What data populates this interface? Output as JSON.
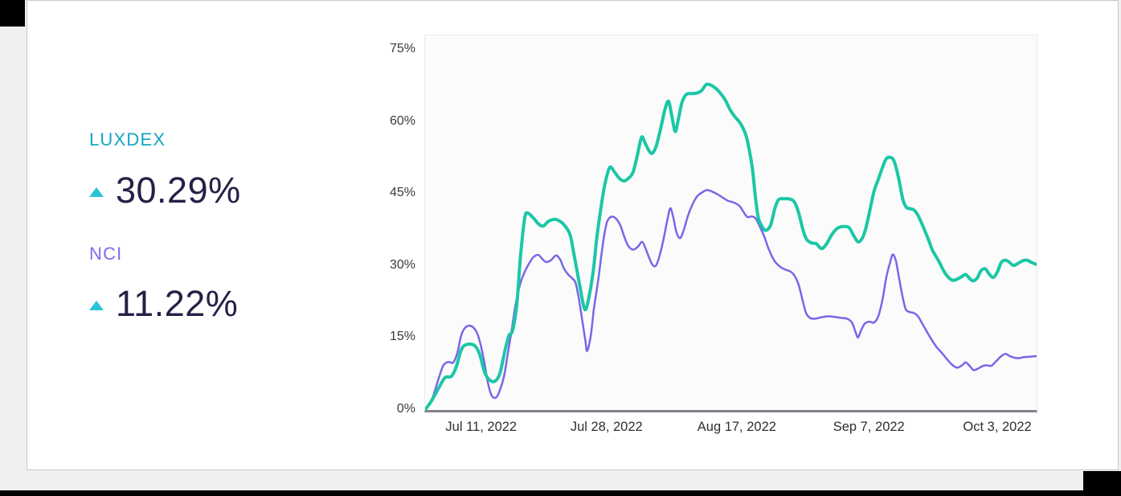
{
  "decor": {
    "black": "#000000",
    "page_background": "#f0f0f0",
    "card_background": "#ffffff",
    "card_border": "#c9c9c9"
  },
  "stats": {
    "luxdex": {
      "label": "LUXDEX",
      "value": "30.29%",
      "direction": "up"
    },
    "nci": {
      "label": "NCI",
      "value": "11.22%",
      "direction": "up"
    }
  },
  "colors": {
    "luxdex_label": "#12a5c3",
    "nci_label": "#7b6cf0",
    "arrow": "#29c5d6",
    "value_text": "#252046",
    "axis_text": "#3a3a3a",
    "axis_line": "#83838d",
    "plot_background": "#fbfbfb",
    "plot_border": "#eaeaec",
    "luxdex_line": "#1bc7a6",
    "nci_line": "#7668e8"
  },
  "chart_data": {
    "type": "line",
    "title": "",
    "xlabel": "",
    "ylabel": "",
    "grid": false,
    "legend_position": "left-panel",
    "ylim": [
      0,
      75
    ],
    "y_unit": "%",
    "yticks": [
      {
        "label": "75%",
        "value": 75
      },
      {
        "label": "60%",
        "value": 60
      },
      {
        "label": "45%",
        "value": 45
      },
      {
        "label": "30%",
        "value": 30
      },
      {
        "label": "15%",
        "value": 15
      },
      {
        "label": "0%",
        "value": 0
      }
    ],
    "xticks": [
      {
        "label": "Jul 11, 2022",
        "pos": 0.093
      },
      {
        "label": "Jul 28, 2022",
        "pos": 0.298
      },
      {
        "label": "Aug 17, 2022",
        "pos": 0.511
      },
      {
        "label": "Sep 7, 2022",
        "pos": 0.727
      },
      {
        "label": "Oct 3, 2022",
        "pos": 0.937
      }
    ],
    "x_range_note": "x positions are fractions of the plot width from Jul 2022 to Oct 3 2022",
    "series": [
      {
        "name": "LUXDEX",
        "color": "#1bc7a6",
        "stroke_width": 4,
        "final_value": "30.29%",
        "points": [
          [
            0,
            0
          ],
          [
            0.011,
            2
          ],
          [
            0.024,
            5
          ],
          [
            0.033,
            6.8
          ],
          [
            0.043,
            7
          ],
          [
            0.051,
            9
          ],
          [
            0.059,
            12.5
          ],
          [
            0.067,
            13.6
          ],
          [
            0.08,
            13.5
          ],
          [
            0.089,
            11.7
          ],
          [
            0.097,
            8
          ],
          [
            0.105,
            6.3
          ],
          [
            0.114,
            6
          ],
          [
            0.122,
            7.5
          ],
          [
            0.13,
            12
          ],
          [
            0.137,
            15.5
          ],
          [
            0.143,
            16.5
          ],
          [
            0.15,
            22
          ],
          [
            0.156,
            32
          ],
          [
            0.163,
            40
          ],
          [
            0.168,
            41
          ],
          [
            0.177,
            40
          ],
          [
            0.185,
            38.8
          ],
          [
            0.193,
            38.3
          ],
          [
            0.202,
            39.3
          ],
          [
            0.212,
            39.7
          ],
          [
            0.219,
            39.4
          ],
          [
            0.227,
            38.6
          ],
          [
            0.237,
            36.5
          ],
          [
            0.244,
            32
          ],
          [
            0.252,
            26.5
          ],
          [
            0.259,
            21.8
          ],
          [
            0.263,
            21
          ],
          [
            0.268,
            23.5
          ],
          [
            0.275,
            29
          ],
          [
            0.281,
            36
          ],
          [
            0.288,
            42.5
          ],
          [
            0.294,
            47
          ],
          [
            0.302,
            50.5
          ],
          [
            0.31,
            49.5
          ],
          [
            0.318,
            48.2
          ],
          [
            0.325,
            47.7
          ],
          [
            0.332,
            48.2
          ],
          [
            0.34,
            49.5
          ],
          [
            0.347,
            53
          ],
          [
            0.354,
            56.8
          ],
          [
            0.36,
            55.5
          ],
          [
            0.367,
            53.8
          ],
          [
            0.372,
            53.5
          ],
          [
            0.378,
            55
          ],
          [
            0.385,
            58.5
          ],
          [
            0.392,
            62.5
          ],
          [
            0.398,
            64.3
          ],
          [
            0.403,
            61.5
          ],
          [
            0.409,
            58
          ],
          [
            0.414,
            60.5
          ],
          [
            0.42,
            64
          ],
          [
            0.427,
            65.7
          ],
          [
            0.435,
            65.9
          ],
          [
            0.444,
            66
          ],
          [
            0.452,
            66.5
          ],
          [
            0.46,
            67.8
          ],
          [
            0.468,
            67.6
          ],
          [
            0.476,
            66.9
          ],
          [
            0.484,
            65.8
          ],
          [
            0.491,
            64.5
          ],
          [
            0.499,
            62.5
          ],
          [
            0.507,
            61
          ],
          [
            0.515,
            59.8
          ],
          [
            0.523,
            57.8
          ],
          [
            0.528,
            55.5
          ],
          [
            0.535,
            50.5
          ],
          [
            0.54,
            44.5
          ],
          [
            0.545,
            40
          ],
          [
            0.551,
            38.2
          ],
          [
            0.557,
            37.4
          ],
          [
            0.565,
            38.5
          ],
          [
            0.572,
            42
          ],
          [
            0.578,
            43.8
          ],
          [
            0.587,
            44
          ],
          [
            0.597,
            43.9
          ],
          [
            0.604,
            43.3
          ],
          [
            0.611,
            41
          ],
          [
            0.618,
            37.5
          ],
          [
            0.624,
            35.5
          ],
          [
            0.632,
            34.8
          ],
          [
            0.64,
            34.6
          ],
          [
            0.648,
            33.6
          ],
          [
            0.656,
            34.5
          ],
          [
            0.665,
            36.5
          ],
          [
            0.674,
            37.8
          ],
          [
            0.683,
            38.2
          ],
          [
            0.693,
            38
          ],
          [
            0.7,
            36.5
          ],
          [
            0.708,
            35
          ],
          [
            0.715,
            35.8
          ],
          [
            0.721,
            38
          ],
          [
            0.728,
            42
          ],
          [
            0.734,
            45.5
          ],
          [
            0.741,
            48
          ],
          [
            0.748,
            50.5
          ],
          [
            0.754,
            52.3
          ],
          [
            0.761,
            52.6
          ],
          [
            0.767,
            51.8
          ],
          [
            0.774,
            48.5
          ],
          [
            0.781,
            44
          ],
          [
            0.787,
            42.2
          ],
          [
            0.794,
            41.9
          ],
          [
            0.8,
            41.6
          ],
          [
            0.807,
            40.3
          ],
          [
            0.815,
            38
          ],
          [
            0.823,
            35.5
          ],
          [
            0.83,
            33.2
          ],
          [
            0.84,
            31
          ],
          [
            0.848,
            29
          ],
          [
            0.855,
            27.7
          ],
          [
            0.863,
            27
          ],
          [
            0.871,
            27.3
          ],
          [
            0.878,
            27.8
          ],
          [
            0.884,
            28.2
          ],
          [
            0.891,
            27.3
          ],
          [
            0.896,
            26.9
          ],
          [
            0.903,
            27.5
          ],
          [
            0.909,
            29
          ],
          [
            0.916,
            29.4
          ],
          [
            0.922,
            28.4
          ],
          [
            0.929,
            27.6
          ],
          [
            0.936,
            28.8
          ],
          [
            0.942,
            30.7
          ],
          [
            0.949,
            31.2
          ],
          [
            0.955,
            30.8
          ],
          [
            0.962,
            30.1
          ],
          [
            0.968,
            30.4
          ],
          [
            0.976,
            31
          ],
          [
            0.984,
            31.2
          ],
          [
            0.992,
            30.7
          ],
          [
            1,
            30.29
          ]
        ]
      },
      {
        "name": "NCI",
        "color": "#7668e8",
        "stroke_width": 2.5,
        "final_value": "11.22%",
        "points": [
          [
            0,
            0
          ],
          [
            0.012,
            2.5
          ],
          [
            0.022,
            6.5
          ],
          [
            0.03,
            9.3
          ],
          [
            0.038,
            10
          ],
          [
            0.046,
            9.9
          ],
          [
            0.053,
            12
          ],
          [
            0.059,
            15.5
          ],
          [
            0.066,
            17.2
          ],
          [
            0.075,
            17.5
          ],
          [
            0.083,
            16.5
          ],
          [
            0.089,
            14.5
          ],
          [
            0.096,
            10.5
          ],
          [
            0.103,
            5.5
          ],
          [
            0.109,
            3
          ],
          [
            0.116,
            2.6
          ],
          [
            0.122,
            4
          ],
          [
            0.129,
            7
          ],
          [
            0.135,
            11.5
          ],
          [
            0.142,
            17
          ],
          [
            0.148,
            22
          ],
          [
            0.155,
            26
          ],
          [
            0.162,
            28.5
          ],
          [
            0.17,
            30.5
          ],
          [
            0.177,
            31.8
          ],
          [
            0.185,
            32.3
          ],
          [
            0.192,
            31.4
          ],
          [
            0.198,
            30.8
          ],
          [
            0.206,
            31.2
          ],
          [
            0.214,
            32.2
          ],
          [
            0.221,
            31.3
          ],
          [
            0.227,
            29.5
          ],
          [
            0.234,
            28.2
          ],
          [
            0.24,
            27.5
          ],
          [
            0.246,
            26.5
          ],
          [
            0.251,
            23.5
          ],
          [
            0.256,
            19.5
          ],
          [
            0.262,
            14.5
          ],
          [
            0.265,
            12.3
          ],
          [
            0.271,
            15.5
          ],
          [
            0.276,
            21
          ],
          [
            0.283,
            27
          ],
          [
            0.288,
            32
          ],
          [
            0.293,
            36.5
          ],
          [
            0.298,
            39.3
          ],
          [
            0.304,
            40.2
          ],
          [
            0.311,
            40
          ],
          [
            0.319,
            38.5
          ],
          [
            0.326,
            36
          ],
          [
            0.332,
            34.2
          ],
          [
            0.34,
            33.4
          ],
          [
            0.348,
            34
          ],
          [
            0.355,
            35
          ],
          [
            0.361,
            33.5
          ],
          [
            0.367,
            31.5
          ],
          [
            0.372,
            30.2
          ],
          [
            0.377,
            30
          ],
          [
            0.382,
            31.5
          ],
          [
            0.389,
            35
          ],
          [
            0.396,
            39.5
          ],
          [
            0.401,
            42
          ],
          [
            0.406,
            40
          ],
          [
            0.411,
            37
          ],
          [
            0.417,
            35.8
          ],
          [
            0.423,
            37.5
          ],
          [
            0.43,
            40.5
          ],
          [
            0.438,
            43
          ],
          [
            0.445,
            44.5
          ],
          [
            0.453,
            45.3
          ],
          [
            0.461,
            45.8
          ],
          [
            0.469,
            45.5
          ],
          [
            0.477,
            45
          ],
          [
            0.486,
            44.3
          ],
          [
            0.495,
            43.6
          ],
          [
            0.505,
            43.2
          ],
          [
            0.514,
            42.5
          ],
          [
            0.522,
            41
          ],
          [
            0.527,
            40.2
          ],
          [
            0.535,
            40.3
          ],
          [
            0.541,
            39.8
          ],
          [
            0.548,
            38
          ],
          [
            0.555,
            36
          ],
          [
            0.561,
            33.8
          ],
          [
            0.568,
            31.8
          ],
          [
            0.574,
            30.6
          ],
          [
            0.582,
            29.7
          ],
          [
            0.59,
            29.2
          ],
          [
            0.598,
            28.8
          ],
          [
            0.604,
            28
          ],
          [
            0.611,
            26
          ],
          [
            0.618,
            22.5
          ],
          [
            0.623,
            20.2
          ],
          [
            0.629,
            19.2
          ],
          [
            0.637,
            19
          ],
          [
            0.648,
            19.3
          ],
          [
            0.658,
            19.5
          ],
          [
            0.669,
            19.4
          ],
          [
            0.679,
            19.2
          ],
          [
            0.69,
            19
          ],
          [
            0.698,
            18.2
          ],
          [
            0.704,
            16.2
          ],
          [
            0.708,
            15.1
          ],
          [
            0.713,
            16.6
          ],
          [
            0.719,
            18
          ],
          [
            0.727,
            18.4
          ],
          [
            0.734,
            18.2
          ],
          [
            0.741,
            19.5
          ],
          [
            0.748,
            23
          ],
          [
            0.754,
            27.5
          ],
          [
            0.761,
            31
          ],
          [
            0.765,
            32.4
          ],
          [
            0.77,
            31
          ],
          [
            0.775,
            27.5
          ],
          [
            0.781,
            23.5
          ],
          [
            0.786,
            21
          ],
          [
            0.792,
            20.4
          ],
          [
            0.799,
            20.2
          ],
          [
            0.806,
            19.5
          ],
          [
            0.813,
            18
          ],
          [
            0.821,
            16.2
          ],
          [
            0.829,
            14.5
          ],
          [
            0.837,
            13
          ],
          [
            0.845,
            11.9
          ],
          [
            0.854,
            10.5
          ],
          [
            0.862,
            9.4
          ],
          [
            0.87,
            8.8
          ],
          [
            0.878,
            9.3
          ],
          [
            0.884,
            9.9
          ],
          [
            0.891,
            9.1
          ],
          [
            0.897,
            8.3
          ],
          [
            0.904,
            8.6
          ],
          [
            0.911,
            9.1
          ],
          [
            0.918,
            9.3
          ],
          [
            0.926,
            9.2
          ],
          [
            0.934,
            10.2
          ],
          [
            0.942,
            11.2
          ],
          [
            0.949,
            11.7
          ],
          [
            0.955,
            11.3
          ],
          [
            0.963,
            10.9
          ],
          [
            0.971,
            10.8
          ],
          [
            0.979,
            11
          ],
          [
            0.989,
            11.1
          ],
          [
            1,
            11.22
          ]
        ]
      }
    ]
  }
}
